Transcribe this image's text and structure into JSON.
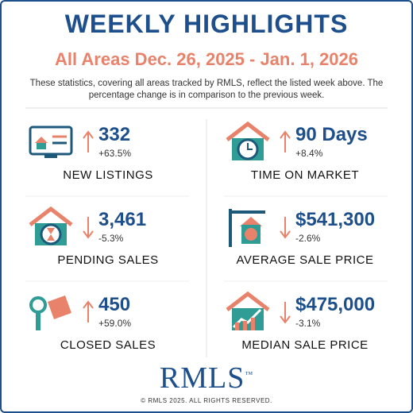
{
  "header": {
    "title": "WEEKLY HIGHLIGHTS",
    "subtitle": "All Areas Dec. 26, 2025 - Jan. 1, 2026",
    "description": "These statistics, covering all areas tracked by RMLS, reflect the listed week above. The percentage change is in comparison to the previous week."
  },
  "stats": [
    {
      "label": "NEW LISTINGS",
      "value": "332",
      "change": "+63.5%",
      "direction": "up"
    },
    {
      "label": "TIME ON MARKET",
      "value": "90 Days",
      "change": "+8.4%",
      "direction": "up"
    },
    {
      "label": "PENDING SALES",
      "value": "3,461",
      "change": "-5.3%",
      "direction": "down"
    },
    {
      "label": "AVERAGE SALE PRICE",
      "value": "$541,300",
      "change": "-2.6%",
      "direction": "down"
    },
    {
      "label": "CLOSED SALES",
      "value": "450",
      "change": "+59.0%",
      "direction": "up"
    },
    {
      "label": "MEDIAN SALE PRICE",
      "value": "$475,000",
      "change": "-3.1%",
      "direction": "down"
    }
  ],
  "footer": {
    "logo": "RMLS",
    "copyright": "© RMLS 2025. ALL RIGHTS RESERVED."
  }
}
